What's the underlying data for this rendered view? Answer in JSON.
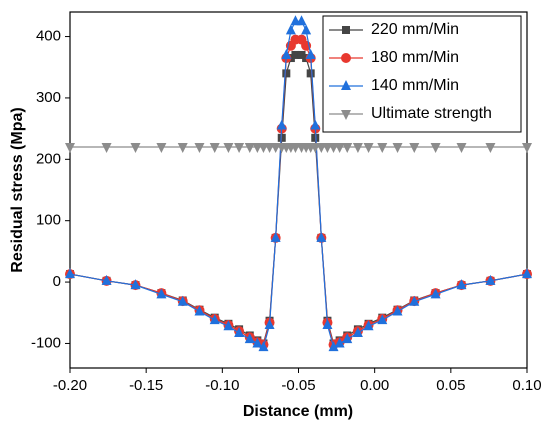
{
  "chart_data": {
    "type": "line",
    "xlabel": "Distance (mm)",
    "ylabel": "Residual stress (Mpa)",
    "x": [
      -0.2,
      -0.176,
      -0.157,
      -0.14,
      -0.126,
      -0.115,
      -0.105,
      -0.096,
      -0.089,
      -0.082,
      -0.077,
      -0.073,
      -0.069,
      -0.065,
      -0.061,
      -0.058,
      -0.055,
      -0.052,
      -0.048,
      -0.045,
      -0.042,
      -0.039,
      -0.035,
      -0.031,
      -0.027,
      -0.023,
      -0.018,
      -0.011,
      -0.004,
      0.005,
      0.015,
      0.026,
      0.04,
      0.057,
      0.076,
      0.1
    ],
    "series": [
      {
        "name": "220 mm/Min",
        "color": "#454545",
        "marker": "square",
        "values": [
          13,
          2,
          -5,
          -18,
          -30,
          -45,
          -58,
          -68,
          -77,
          -87,
          -95,
          -100,
          -63,
          72,
          235,
          340,
          365,
          370,
          370,
          365,
          340,
          235,
          72,
          -63,
          -100,
          -95,
          -87,
          -77,
          -68,
          -58,
          -45,
          -30,
          -18,
          -5,
          2,
          13
        ]
      },
      {
        "name": "180 mm/Min",
        "color": "#e8382f",
        "marker": "circle",
        "values": [
          13,
          2,
          -5,
          -18,
          -31,
          -46,
          -60,
          -70,
          -80,
          -90,
          -98,
          -102,
          -66,
          72,
          250,
          365,
          385,
          395,
          395,
          385,
          365,
          250,
          72,
          -66,
          -102,
          -98,
          -90,
          -80,
          -70,
          -60,
          -46,
          -31,
          -18,
          -5,
          2,
          13
        ]
      },
      {
        "name": "140 mm/Min",
        "color": "#2070dc",
        "marker": "triangle-up",
        "values": [
          13,
          2,
          -5,
          -20,
          -32,
          -48,
          -62,
          -72,
          -83,
          -93,
          -100,
          -106,
          -70,
          72,
          255,
          370,
          410,
          425,
          425,
          410,
          370,
          255,
          72,
          -70,
          -106,
          -100,
          -93,
          -83,
          -72,
          -62,
          -48,
          -32,
          -20,
          -5,
          2,
          13
        ]
      },
      {
        "name": "Ultimate strength",
        "color": "#8c8c8c",
        "marker": "triangle-down",
        "values": [
          220,
          220,
          220,
          220,
          220,
          220,
          220,
          220,
          220,
          220,
          220,
          220,
          220,
          220,
          220,
          220,
          220,
          220,
          220,
          220,
          220,
          220,
          220,
          220,
          220,
          220,
          220,
          220,
          220,
          220,
          220,
          220,
          220,
          220,
          220,
          220
        ]
      }
    ],
    "xlim": [
      -0.2,
      0.1
    ],
    "xticks": [
      {
        "value": -0.2,
        "label": "-0.20"
      },
      -0.15,
      {
        "value": -0.1,
        "label": "-0.10"
      },
      -0.05,
      {
        "value": 0,
        "label": "0.00"
      },
      0.05,
      {
        "value": 0.1,
        "label": "0.10"
      }
    ],
    "ylim": [
      -140,
      440
    ],
    "yticks": [
      -100,
      0,
      100,
      200,
      300,
      400
    ],
    "legend": "upper right"
  }
}
